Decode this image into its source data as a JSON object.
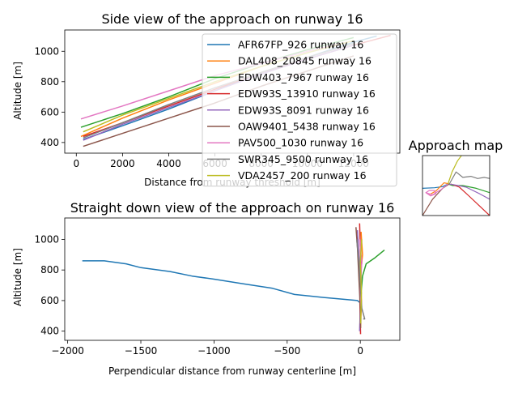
{
  "chart_data": [
    {
      "type": "line",
      "title": "Side view of the approach on runway 16",
      "xlabel": "Distance from runway threshold [m]",
      "ylabel": "Altitude [m]",
      "xlim": [
        -500,
        14000
      ],
      "ylim": [
        330,
        1140
      ],
      "xticks": [
        0,
        2000,
        4000,
        6000,
        8000,
        10000,
        12000
      ],
      "yticks": [
        400,
        600,
        800,
        1000
      ],
      "legend_position": "upper-right",
      "series": [
        {
          "name": "AFR67FP_926 runway 16",
          "color": "#1f77b4",
          "x": [
            300,
            2000,
            4000,
            6000,
            8000,
            10000,
            12000,
            13000
          ],
          "y": [
            420,
            510,
            620,
            740,
            860,
            960,
            1060,
            1100
          ]
        },
        {
          "name": "DAL408_20845 runway 16",
          "color": "#ff7f0e",
          "x": [
            200,
            2000,
            4000,
            6000,
            8000,
            10000,
            12000
          ],
          "y": [
            440,
            560,
            680,
            790,
            900,
            990,
            1070
          ]
        },
        {
          "name": "EDW403_7967 runway 16",
          "color": "#2ca02c",
          "x": [
            200,
            2000,
            4000,
            6000,
            8000,
            10000,
            12000
          ],
          "y": [
            500,
            590,
            700,
            820,
            920,
            1010,
            1090
          ]
        },
        {
          "name": "EDW93S_13910 runway 16",
          "color": "#d62728",
          "x": [
            300,
            2000,
            4000,
            6000,
            8000,
            10000,
            12000,
            13600
          ],
          "y": [
            440,
            530,
            640,
            750,
            860,
            950,
            1040,
            1105
          ]
        },
        {
          "name": "EDW93S_8091 runway 16",
          "color": "#9467bd",
          "x": [
            300,
            2000,
            4000,
            6000,
            8000,
            10000,
            12000
          ],
          "y": [
            415,
            520,
            630,
            740,
            850,
            950,
            1040
          ]
        },
        {
          "name": "OAW9401_5438 runway 16",
          "color": "#8c564b",
          "x": [
            300,
            2000,
            4000,
            6000,
            8000,
            10000,
            12000
          ],
          "y": [
            375,
            460,
            560,
            660,
            770,
            870,
            970
          ]
        },
        {
          "name": "PAV500_1030 runway 16",
          "color": "#e377c2",
          "x": [
            200,
            2000,
            4000,
            6000,
            8000,
            10000,
            12000
          ],
          "y": [
            555,
            640,
            740,
            840,
            920,
            1000,
            1070
          ]
        },
        {
          "name": "SWR345_9500 runway 16",
          "color": "#7f7f7f",
          "x": [
            300,
            2000,
            4000,
            6000,
            8000,
            10000,
            12000
          ],
          "y": [
            430,
            530,
            650,
            760,
            860,
            960,
            1050
          ]
        },
        {
          "name": "VDA2457_200 runway 16",
          "color": "#bcbd22",
          "x": [
            300,
            2000,
            4000,
            6000,
            8000,
            10000,
            12000
          ],
          "y": [
            470,
            580,
            690,
            800,
            900,
            990,
            1070
          ]
        }
      ]
    },
    {
      "type": "line",
      "title": "Straight down view of the approach on runway 16",
      "xlabel": "Perpendicular distance from runway centerline [m]",
      "ylabel": "Altitude [m]",
      "xlim": [
        -2020,
        270
      ],
      "ylim": [
        340,
        1140
      ],
      "xticks": [
        -2000,
        -1500,
        -1000,
        -500,
        0
      ],
      "yticks": [
        400,
        600,
        800,
        1000
      ],
      "series": [
        {
          "name": "AFR67FP_926 runway 16",
          "color": "#1f77b4",
          "x": [
            -1900,
            -1750,
            -1600,
            -1500,
            -1300,
            -1150,
            -1000,
            -800,
            -600,
            -450,
            -250,
            -20,
            0
          ],
          "y": [
            860,
            860,
            840,
            815,
            790,
            760,
            740,
            710,
            680,
            640,
            620,
            600,
            585
          ]
        },
        {
          "name": "DAL408_20845 runway 16",
          "color": "#ff7f0e",
          "x": [
            5,
            15,
            0,
            8,
            2
          ],
          "y": [
            1050,
            900,
            750,
            600,
            420
          ]
        },
        {
          "name": "EDW403_7967 runway 16",
          "color": "#2ca02c",
          "x": [
            165,
            100,
            40,
            15,
            5,
            2
          ],
          "y": [
            930,
            880,
            840,
            760,
            650,
            450
          ]
        },
        {
          "name": "EDW93S_13910 runway 16",
          "color": "#d62728",
          "x": [
            -5,
            0,
            5,
            -3,
            2
          ],
          "y": [
            1105,
            950,
            800,
            600,
            380
          ]
        },
        {
          "name": "EDW93S_8091 runway 16",
          "color": "#9467bd",
          "x": [
            -20,
            -10,
            5,
            0,
            -5
          ],
          "y": [
            1060,
            900,
            750,
            550,
            400
          ]
        },
        {
          "name": "OAW9401_5438 runway 16",
          "color": "#8c564b",
          "x": [
            -30,
            -20,
            -10,
            0,
            2
          ],
          "y": [
            1080,
            950,
            750,
            550,
            420
          ]
        },
        {
          "name": "PAV500_1030 runway 16",
          "color": "#e377c2",
          "x": [
            -5,
            10,
            0,
            5
          ],
          "y": [
            1000,
            850,
            700,
            560
          ]
        },
        {
          "name": "SWR345_9500 runway 16",
          "color": "#7f7f7f",
          "x": [
            -25,
            -10,
            0,
            10,
            30,
            20
          ],
          "y": [
            1000,
            850,
            700,
            550,
            480,
            480
          ]
        },
        {
          "name": "VDA2457_200 runway 16",
          "color": "#bcbd22",
          "x": [
            10,
            0,
            8,
            2
          ],
          "y": [
            1000,
            850,
            650,
            450
          ]
        }
      ]
    },
    {
      "type": "line",
      "title": "Approach map",
      "series": [
        {
          "name": "AFR67FP_926 runway 16",
          "color": "#1f77b4",
          "x": [
            0,
            18,
            30,
            38
          ],
          "y": [
            50,
            51,
            53,
            58
          ]
        },
        {
          "name": "DAL408_20845 runway 16",
          "color": "#ff7f0e",
          "x": [
            40,
            32,
            20,
            10
          ],
          "y": [
            58,
            60,
            45,
            38
          ]
        },
        {
          "name": "EDW403_7967 runway 16",
          "color": "#2ca02c",
          "x": [
            100,
            80,
            60,
            45,
            38
          ],
          "y": [
            42,
            50,
            55,
            55,
            58
          ]
        },
        {
          "name": "EDW93S_13910 runway 16",
          "color": "#d62728",
          "x": [
            100,
            70,
            55,
            42
          ],
          "y": [
            0,
            35,
            52,
            58
          ]
        },
        {
          "name": "EDW93S_8091 runway 16",
          "color": "#9467bd",
          "x": [
            100,
            85,
            65,
            45,
            38
          ],
          "y": [
            30,
            40,
            52,
            57,
            58
          ]
        },
        {
          "name": "OAW9401_5438 runway 16",
          "color": "#8c564b",
          "x": [
            0,
            15,
            30,
            40
          ],
          "y": [
            0,
            30,
            50,
            58
          ]
        },
        {
          "name": "PAV500_1030 runway 16",
          "color": "#e377c2",
          "x": [
            5,
            12,
            20,
            18,
            10,
            5,
            15,
            28,
            38
          ],
          "y": [
            42,
            36,
            40,
            46,
            46,
            42,
            38,
            48,
            58
          ]
        },
        {
          "name": "SWR345_9500 runway 16",
          "color": "#7f7f7f",
          "x": [
            40,
            50,
            60,
            72,
            82,
            92,
            100
          ],
          "y": [
            58,
            80,
            70,
            72,
            68,
            70,
            68
          ]
        },
        {
          "name": "VDA2457_200 runway 16",
          "color": "#bcbd22",
          "x": [
            38,
            44,
            52,
            58
          ],
          "y": [
            58,
            80,
            100,
            110
          ]
        }
      ]
    }
  ]
}
